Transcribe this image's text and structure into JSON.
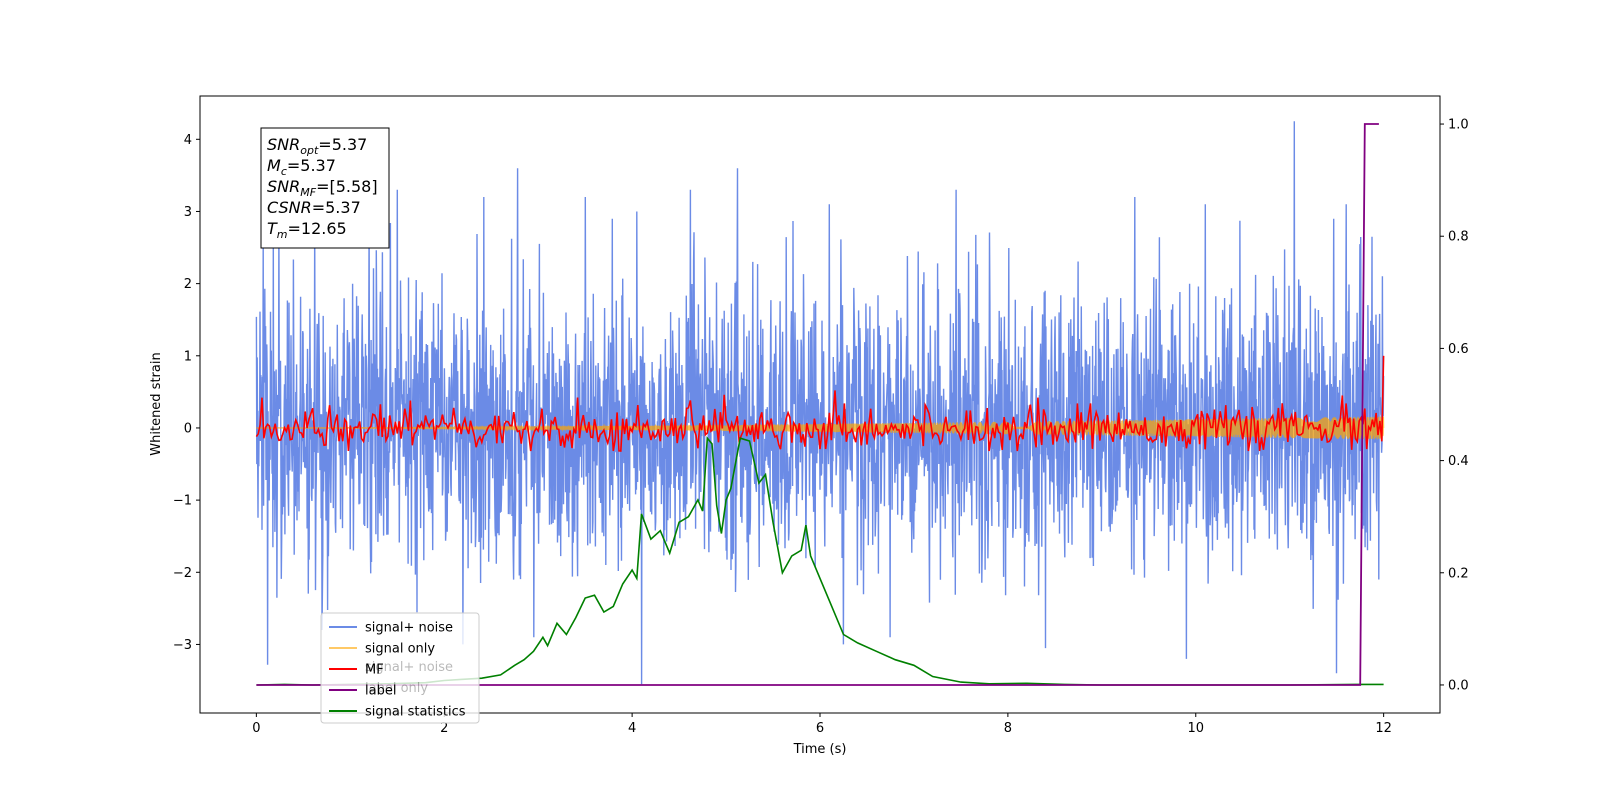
{
  "chart_data": {
    "type": "line",
    "title": "",
    "xlabel": "Time (s)",
    "ylabel": "Whitened strain",
    "y2label": "",
    "xlim": [
      -0.6,
      12.6
    ],
    "ylim": [
      -3.95,
      4.6
    ],
    "y2lim": [
      -0.05,
      1.05
    ],
    "xticks": [
      0,
      2,
      4,
      6,
      8,
      10,
      12
    ],
    "yticks": [
      -3,
      -2,
      -1,
      0,
      1,
      2,
      3,
      4
    ],
    "y2ticks": [
      0.0,
      0.2,
      0.4,
      0.6,
      0.8,
      1.0
    ],
    "grid": false,
    "legend_placement": "lower-center",
    "annotation_lines": [
      {
        "base": "SNR",
        "sub": "opt",
        "rest": "=5.37"
      },
      {
        "base": "M",
        "sub": "c",
        "rest": "=5.37"
      },
      {
        "base": "SNR",
        "sub": "MF",
        "rest": "=[5.58]"
      },
      {
        "base": "CSNR",
        "sub": "",
        "rest": "=5.37"
      },
      {
        "base": "T",
        "sub": "m",
        "rest": "=12.65"
      }
    ],
    "colors": {
      "signal_noise": "#6b8be6",
      "signal_only": "#ffa500",
      "mf": "#ff0000",
      "label": "#800080",
      "statistics": "#008000"
    },
    "series": [
      {
        "name": "signal+ noise",
        "axis": "left",
        "kind": "noise",
        "x_range": [
          0,
          12
        ],
        "mean": 0.0,
        "std": 0.95,
        "spikes": [
          {
            "x": 0.18,
            "y": 2.6
          },
          {
            "x": 0.62,
            "y": 2.85
          },
          {
            "x": 1.2,
            "y": 2.9
          },
          {
            "x": 1.5,
            "y": 3.3
          },
          {
            "x": 2.42,
            "y": 3.2
          },
          {
            "x": 2.78,
            "y": 3.6
          },
          {
            "x": 3.5,
            "y": 3.2
          },
          {
            "x": 4.05,
            "y": 3.0
          },
          {
            "x": 4.62,
            "y": 3.3
          },
          {
            "x": 5.12,
            "y": 3.6
          },
          {
            "x": 6.1,
            "y": 3.1
          },
          {
            "x": 7.45,
            "y": 3.3
          },
          {
            "x": 9.35,
            "y": 3.2
          },
          {
            "x": 10.1,
            "y": 3.1
          },
          {
            "x": 11.05,
            "y": 4.25
          },
          {
            "x": 11.6,
            "y": 3.1
          },
          {
            "x": 0.12,
            "y": -3.28
          },
          {
            "x": 0.7,
            "y": -2.8
          },
          {
            "x": 2.2,
            "y": -3.0
          },
          {
            "x": 4.1,
            "y": -3.55
          },
          {
            "x": 6.25,
            "y": -3.0
          },
          {
            "x": 8.4,
            "y": -3.05
          },
          {
            "x": 9.9,
            "y": -3.2
          },
          {
            "x": 11.5,
            "y": -3.4
          },
          {
            "x": 11.95,
            "y": -2.1
          }
        ]
      },
      {
        "name": "signal only",
        "axis": "left",
        "kind": "chirp",
        "x_range": [
          0,
          12
        ],
        "amplitude_start": 0.0,
        "amplitude_end": 0.16
      },
      {
        "name": "MF",
        "axis": "left",
        "kind": "noise",
        "x_range": [
          0,
          12
        ],
        "mean": 0.0,
        "std": 0.14,
        "spikes": [
          {
            "x": 0.05,
            "y": 0.42
          },
          {
            "x": 1.65,
            "y": 0.38
          },
          {
            "x": 3.42,
            "y": 0.42
          },
          {
            "x": 4.62,
            "y": 0.38
          },
          {
            "x": 4.98,
            "y": 0.46
          },
          {
            "x": 6.15,
            "y": 0.52
          },
          {
            "x": 8.32,
            "y": 0.42
          },
          {
            "x": 11.55,
            "y": 0.45
          },
          {
            "x": 12.0,
            "y": 1.0
          }
        ]
      },
      {
        "name": "label",
        "axis": "right",
        "kind": "line",
        "x": [
          0.0,
          11.75,
          11.8,
          11.88,
          11.95
        ],
        "y": [
          0.0,
          0.0,
          1.0,
          1.0,
          1.0
        ]
      },
      {
        "name": "signal statistics",
        "axis": "right",
        "kind": "line",
        "x": [
          0.0,
          0.3,
          0.6,
          1.0,
          1.4,
          1.8,
          2.0,
          2.2,
          2.4,
          2.6,
          2.75,
          2.85,
          2.95,
          3.05,
          3.1,
          3.2,
          3.3,
          3.4,
          3.5,
          3.6,
          3.7,
          3.8,
          3.9,
          4.0,
          4.05,
          4.1,
          4.2,
          4.3,
          4.4,
          4.5,
          4.6,
          4.7,
          4.75,
          4.8,
          4.85,
          4.9,
          4.95,
          5.0,
          5.05,
          5.15,
          5.25,
          5.35,
          5.42,
          5.5,
          5.6,
          5.7,
          5.8,
          5.85,
          5.9,
          6.0,
          6.1,
          6.25,
          6.4,
          6.6,
          6.8,
          7.0,
          7.2,
          7.5,
          7.8,
          8.2,
          8.6,
          9.0,
          10.0,
          11.0,
          11.7,
          12.0
        ],
        "y": [
          0.0,
          0.001,
          0.0,
          0.001,
          0.002,
          0.004,
          0.008,
          0.01,
          0.012,
          0.018,
          0.035,
          0.045,
          0.06,
          0.085,
          0.07,
          0.11,
          0.09,
          0.12,
          0.155,
          0.16,
          0.13,
          0.14,
          0.18,
          0.205,
          0.19,
          0.305,
          0.26,
          0.275,
          0.235,
          0.29,
          0.3,
          0.33,
          0.31,
          0.44,
          0.43,
          0.32,
          0.27,
          0.33,
          0.35,
          0.44,
          0.435,
          0.36,
          0.375,
          0.29,
          0.2,
          0.23,
          0.24,
          0.285,
          0.23,
          0.19,
          0.15,
          0.09,
          0.075,
          0.06,
          0.045,
          0.035,
          0.015,
          0.005,
          0.002,
          0.003,
          0.001,
          0.0,
          0.0,
          0.0,
          0.001,
          0.001
        ]
      }
    ],
    "legend": {
      "entries": [
        "signal+ noise",
        "signal only",
        "MF",
        "label",
        "signal statistics"
      ],
      "ghost_entries": [
        "signal+ noise",
        "label only"
      ]
    }
  }
}
